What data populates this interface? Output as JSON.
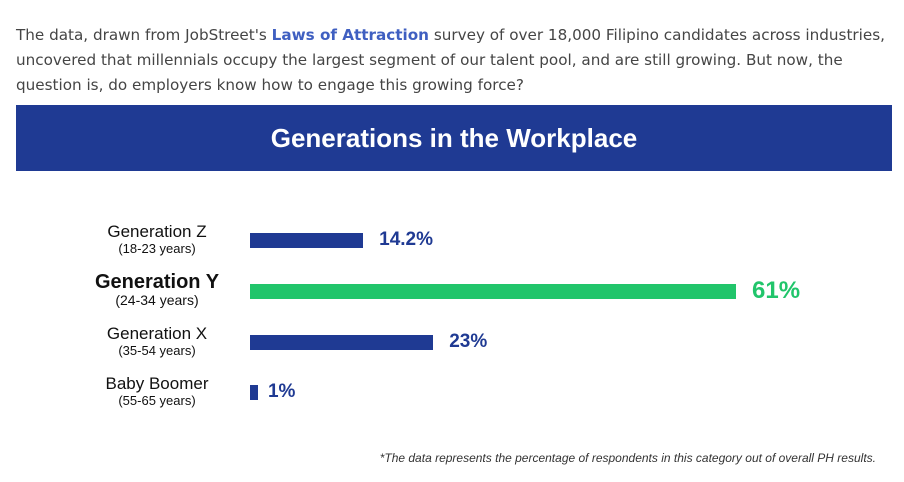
{
  "intro": {
    "text_before": "The data, drawn from JobStreet's ",
    "link_text": "Laws of Attraction",
    "text_after": " survey of over 18,000 Filipino candidates across industries, uncovered that millennials occupy the largest segment of our talent pool, and are still growing. But now, the question is, do employers know how to engage this growing force?"
  },
  "colors": {
    "banner": "#1f3a93",
    "bar_default": "#1f3a93",
    "bar_highlight": "#21c56b",
    "link": "#3f5fc1"
  },
  "chart_data": {
    "type": "bar",
    "orientation": "horizontal",
    "title": "Generations in the Workplace",
    "categories": [
      "Generation Z",
      "Generation Y",
      "Generation X",
      "Baby Boomer"
    ],
    "category_sublabels": [
      "(18-23 years)",
      "(24-34 years)",
      "(35-54 years)",
      "(55-65 years)"
    ],
    "values": [
      14.2,
      61,
      23,
      1
    ],
    "value_labels": [
      "14.2%",
      "61%",
      "23%",
      "1%"
    ],
    "highlight_index": 1,
    "xlim": [
      0,
      61
    ],
    "grid": false,
    "footnote": "*The data represents the percentage of respondents in this category out of overall PH results."
  }
}
